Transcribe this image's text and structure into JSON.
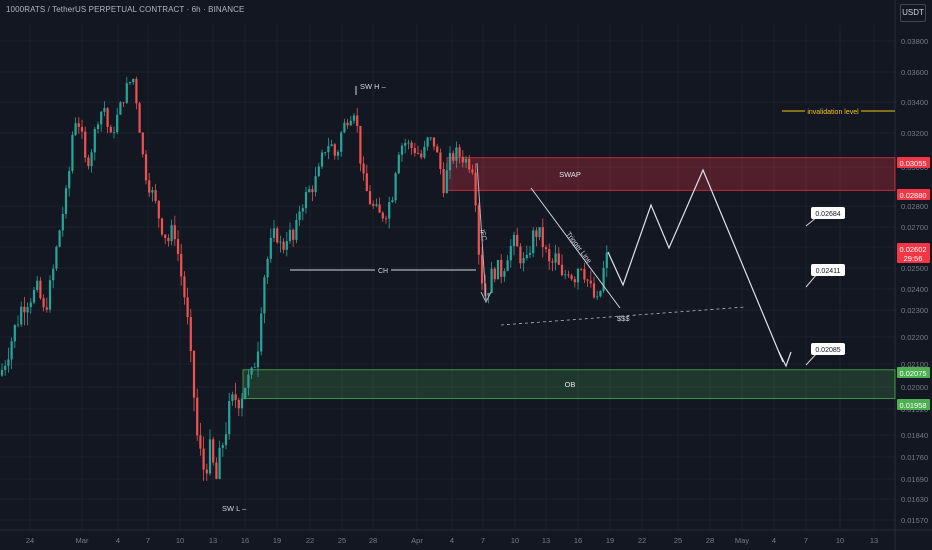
{
  "chart_data": {
    "type": "candlestick",
    "title": "1000RATS / TetherUS PERPETUAL CONTRACT · 6h · BINANCE",
    "currency": "USDT",
    "y_ticks": [
      "0.03800",
      "0.03600",
      "0.03400",
      "0.03200",
      "0.03000",
      "0.02800",
      "0.02700",
      "0.02600",
      "0.02500",
      "0.02400",
      "0.02300",
      "0.02200",
      "0.02100",
      "0.02000",
      "0.01920",
      "0.01840",
      "0.01760",
      "0.01690",
      "0.01630",
      "0.01570"
    ],
    "x_ticks": [
      "24",
      "Mar",
      "4",
      "7",
      "10",
      "13",
      "16",
      "19",
      "22",
      "25",
      "28",
      "Apr",
      "4",
      "7",
      "10",
      "13",
      "16",
      "19",
      "22",
      "25",
      "28",
      "May",
      "4",
      "7",
      "10",
      "13"
    ],
    "price_labels": [
      {
        "value": "0.03055",
        "color": "#f23645"
      },
      {
        "value": "0.02880",
        "color": "#f23645"
      },
      {
        "value": "0.02602",
        "sub": "29:56",
        "color": "#f23645"
      },
      {
        "value": "0.02075",
        "color": "#4caf50"
      },
      {
        "value": "0.01958",
        "color": "#4caf50"
      }
    ],
    "zones": [
      {
        "name": "SWAP",
        "top": 0.03055,
        "bottom": 0.0288,
        "color": "#f23645"
      },
      {
        "name": "OB",
        "top": 0.02075,
        "bottom": 0.01958,
        "color": "#4caf50"
      }
    ],
    "annotations": {
      "invalidation": "invalidation level",
      "swh": "SW H",
      "swl": "SW L",
      "ch": "CH",
      "ifc": "IFC",
      "trigger": "Trigger Line",
      "liquidity": "$$$",
      "targets": [
        "0.02684",
        "0.02411",
        "0.02085"
      ]
    },
    "current_price": 0.02602,
    "colors": {
      "up": "#26a69a",
      "down": "#ef5350",
      "background": "#131722",
      "grid": "#1e222d",
      "text": "#b2b5be",
      "invalidation": "#f5c518"
    }
  }
}
